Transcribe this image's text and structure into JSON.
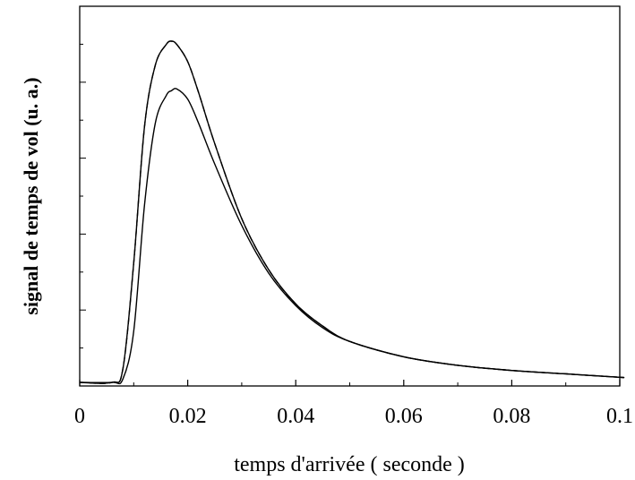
{
  "chart_data": {
    "type": "line",
    "title": "",
    "xlabel": "temps d'arrivée ( seconde )",
    "ylabel": "signal de temps de vol (u. a.)",
    "xlim": [
      0,
      0.1
    ],
    "ylim": [
      0,
      1
    ],
    "x_ticks": [
      0,
      0.02,
      0.04,
      0.06,
      0.08,
      0.1
    ],
    "x_tick_labels": [
      "0",
      "0.02",
      "0.04",
      "0.06",
      "0.08",
      "0.1"
    ],
    "y_tick_labels_shown": false,
    "grid": false,
    "legend": "none",
    "x": [
      0.006,
      0.008,
      0.01,
      0.012,
      0.014,
      0.016,
      0.017,
      0.018,
      0.02,
      0.022,
      0.025,
      0.03,
      0.035,
      0.04,
      0.045,
      0.05,
      0.06,
      0.07,
      0.08,
      0.09,
      0.1
    ],
    "series": [
      {
        "style": "solid",
        "color": "#000000",
        "values": [
          0.0,
          0.04,
          0.35,
          0.75,
          0.93,
          0.99,
          1.0,
          0.99,
          0.94,
          0.85,
          0.7,
          0.48,
          0.33,
          0.23,
          0.165,
          0.12,
          0.075,
          0.05,
          0.035,
          0.025,
          0.015
        ]
      },
      {
        "style": "dashed",
        "color": "#000000",
        "values": [
          0.0,
          0.04,
          0.35,
          0.75,
          0.93,
          0.99,
          1.0,
          0.99,
          0.94,
          0.85,
          0.7,
          0.48,
          0.33,
          0.23,
          0.165,
          0.12,
          0.075,
          0.05,
          0.035,
          0.025,
          0.015
        ]
      },
      {
        "style": "solid",
        "color": "#000000",
        "values": [
          0.0,
          0.01,
          0.15,
          0.52,
          0.76,
          0.84,
          0.855,
          0.86,
          0.83,
          0.76,
          0.64,
          0.46,
          0.32,
          0.225,
          0.16,
          0.12,
          0.075,
          0.05,
          0.035,
          0.025,
          0.015
        ]
      }
    ]
  }
}
